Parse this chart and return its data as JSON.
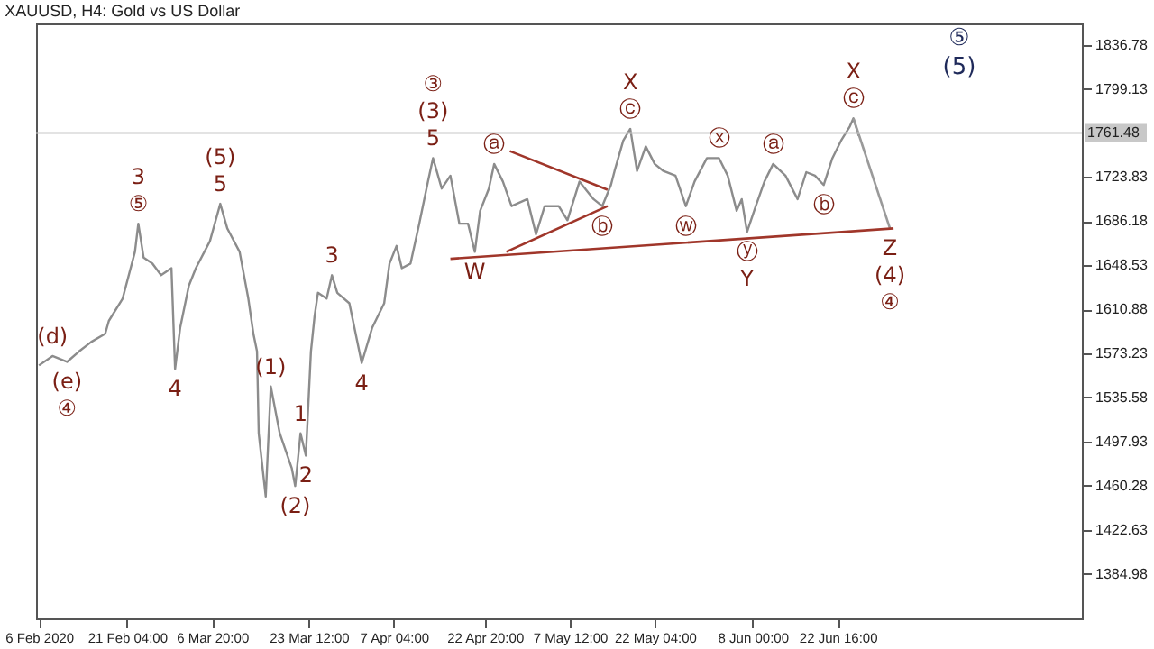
{
  "chart_data": {
    "type": "line",
    "title": "XAUUSD, H4:  Gold vs US Dollar",
    "xlim": [
      "2020-02-05T12:00",
      "2020-08-03T18:00"
    ],
    "xticks": [
      {
        "value": "2020-02-06",
        "label": "6 Feb 2020"
      },
      {
        "value": "2020-02-21T04:00",
        "label": "21 Feb 04:00"
      },
      {
        "value": "2020-03-06T20:00",
        "label": "6 Mar 20:00"
      },
      {
        "value": "2020-03-23T12:00",
        "label": "23 Mar 12:00"
      },
      {
        "value": "2020-04-07T04:00",
        "label": "7 Apr 04:00"
      },
      {
        "value": "2020-04-22T20:00",
        "label": "22 Apr 20:00"
      },
      {
        "value": "2020-05-07T12:00",
        "label": "7 May 12:00"
      },
      {
        "value": "2020-05-22T04:00",
        "label": "22 May 04:00"
      },
      {
        "value": "2020-06-08T00:00",
        "label": "8 Jun 00:00"
      },
      {
        "value": "2020-06-22T16:00",
        "label": "22 Jun 16:00"
      }
    ],
    "ylim": [
      1347,
      1855
    ],
    "yticks": [
      1384.98,
      1422.63,
      1460.28,
      1497.93,
      1535.58,
      1573.23,
      1610.88,
      1648.53,
      1686.18,
      1723.83,
      1799.13,
      1836.78
    ],
    "series": [
      {
        "color": "#8c8c8c",
        "x": [
          "2020-02-06T00:00",
          "2020-02-08T08:00",
          "2020-02-10T20:00",
          "2020-02-12T22:00",
          "2020-02-15T00:00",
          "2020-02-17T10:00",
          "2020-02-18T01:00",
          "2020-02-20T10:00",
          "2020-02-22T13:00",
          "2020-02-23T03:00",
          "2020-02-24T01:00",
          "2020-02-25T13:00",
          "2020-02-27T01:00",
          "2020-02-28T20:00",
          "2020-02-29T11:00",
          "2020-03-01T08:00",
          "2020-03-02T20:00",
          "2020-03-04T01:00",
          "2020-03-06T11:00",
          "2020-03-08T06:00",
          "2020-03-09T11:00",
          "2020-03-11T14:00",
          "2020-03-13T02:00",
          "2020-03-13T23:00",
          "2020-03-14T14:00",
          "2020-03-14T21:00",
          "2020-03-16T02:00",
          "2020-03-16T23:00",
          "2020-03-18T12:00",
          "2020-03-20T14:00",
          "2020-03-21T04:00",
          "2020-03-22T02:00",
          "2020-03-23T00:00",
          "2020-03-23T21:00",
          "2020-03-24T12:00",
          "2020-03-25T02:00",
          "2020-03-26T14:00",
          "2020-03-27T12:00",
          "2020-03-28T10:00",
          "2020-03-30T12:00",
          "2020-04-01T15:00",
          "2020-04-03T10:00",
          "2020-04-05T12:00",
          "2020-04-06T10:00",
          "2020-04-07T15:00",
          "2020-04-08T13:00",
          "2020-04-10T01:00",
          "2020-04-11T13:00",
          "2020-04-13T01:00",
          "2020-04-13T22:00",
          "2020-04-15T10:00",
          "2020-04-16T22:00",
          "2020-04-18T11:00",
          "2020-04-19T23:00",
          "2020-04-21T03:00",
          "2020-04-22T01:00",
          "2020-04-23T13:00",
          "2020-04-24T11:00",
          "2020-04-25T23:00",
          "2020-04-27T11:00",
          "2020-04-30T04:00",
          "2020-05-01T16:00",
          "2020-05-03T04:00",
          "2020-05-05T14:00",
          "2020-05-07T02:00",
          "2020-05-09T04:00",
          "2020-05-11T14:00",
          "2020-05-13T02:00",
          "2020-05-14T14:00",
          "2020-05-15T05:00",
          "2020-05-16T17:00",
          "2020-05-17T22:00",
          "2020-05-19T02:00",
          "2020-05-20T14:00",
          "2020-05-22T03:00",
          "2020-05-23T15:00",
          "2020-05-25T17:00",
          "2020-05-27T12:00",
          "2020-05-29T00:00",
          "2020-05-31T03:00",
          "2020-06-02T05:00",
          "2020-06-03T17:00",
          "2020-06-05T06:00",
          "2020-06-06T03:00",
          "2020-06-07T01:00",
          "2020-06-08T13:00",
          "2020-06-10T01:00",
          "2020-06-11T13:00",
          "2020-06-13T16:00",
          "2020-06-15T18:00",
          "2020-06-17T06:00",
          "2020-06-18T18:00",
          "2020-06-20T06:00",
          "2020-06-21T18:00",
          "2020-06-23T06:00",
          "2020-06-24T18:00",
          "2020-06-25T09:00",
          "2020-06-26T07:00"
        ],
        "values": [
          1563,
          1571,
          1566,
          1575,
          1583,
          1590,
          1601,
          1620,
          1660,
          1684,
          1655,
          1650,
          1640,
          1646,
          1560,
          1595,
          1631,
          1646,
          1669,
          1701,
          1680,
          1660,
          1620,
          1590,
          1575,
          1505,
          1451,
          1545,
          1505,
          1475,
          1460,
          1505,
          1486,
          1575,
          1605,
          1625,
          1620,
          1640,
          1625,
          1616,
          1565,
          1595,
          1616,
          1650,
          1665,
          1646,
          1650,
          1684,
          1720,
          1740,
          1714,
          1725,
          1684,
          1684,
          1660,
          1695,
          1714,
          1735,
          1720,
          1699,
          1705,
          1675,
          1699,
          1699,
          1687,
          1720,
          1705,
          1699,
          1717,
          1729,
          1755,
          1765,
          1729,
          1750,
          1735,
          1729,
          1725,
          1699,
          1720,
          1740,
          1740,
          1725,
          1695,
          1705,
          1677,
          1699,
          1720,
          1735,
          1725,
          1705,
          1728,
          1725,
          1717,
          1740,
          1755,
          1767,
          1774,
          1759
        ]
      },
      {
        "color": "#9a9a9a",
        "x": [
          "2020-06-25T09:00",
          "2020-07-01T16:00"
        ],
        "values": [
          1774,
          1680
        ]
      },
      {
        "color": "#a0362a",
        "x": [
          "2020-04-16T22:00",
          "2020-07-02T07:00"
        ],
        "values": [
          1654,
          1680
        ]
      },
      {
        "color": "#a0362a",
        "x": [
          "2020-04-27T04:00",
          "2020-05-14T00:00"
        ],
        "values": [
          1746,
          1713
        ]
      },
      {
        "color": "#a0362a",
        "x": [
          "2020-04-26T13:00",
          "2020-05-14T00:00"
        ],
        "values": [
          1660,
          1699
        ]
      }
    ],
    "ref_lines": [
      {
        "axis": "y",
        "value": 1761.48,
        "label": "1761.48",
        "color": "#c8c8c8"
      }
    ],
    "annotations": [
      {
        "text": "(d)",
        "x": "2020-02-08T08:00",
        "y": 1571
      },
      {
        "text": "(e)",
        "x": "2020-02-10T20:00",
        "y": 1566
      },
      {
        "text": "④",
        "x": "2020-02-10T20:00",
        "y": 1566
      },
      {
        "text": "⑤",
        "x": "2020-02-23T03:00",
        "y": 1684
      },
      {
        "text": "3",
        "x": "2020-02-23T03:00",
        "y": 1684
      },
      {
        "text": "4",
        "x": "2020-02-29T11:00",
        "y": 1560
      },
      {
        "text": "5",
        "x": "2020-03-08T06:00",
        "y": 1701
      },
      {
        "text": "(5)",
        "x": "2020-03-08T06:00",
        "y": 1701
      },
      {
        "text": "(1)",
        "x": "2020-03-16T23:00",
        "y": 1545
      },
      {
        "text": "(2)",
        "x": "2020-03-21T04:00",
        "y": 1460
      },
      {
        "text": "1",
        "x": "2020-03-22T02:00",
        "y": 1505
      },
      {
        "text": "2",
        "x": "2020-03-23T00:00",
        "y": 1486
      },
      {
        "text": "3",
        "x": "2020-03-27T12:00",
        "y": 1640
      },
      {
        "text": "4",
        "x": "2020-04-01T15:00",
        "y": 1565
      },
      {
        "text": "5",
        "x": "2020-04-13T22:00",
        "y": 1740
      },
      {
        "text": "(3)",
        "x": "2020-04-13T22:00",
        "y": 1740
      },
      {
        "text": "③",
        "x": "2020-04-13T22:00",
        "y": 1740
      },
      {
        "text": "W",
        "x": "2020-04-21T03:00",
        "y": 1660
      },
      {
        "text": "ⓐ",
        "x": "2020-04-24T11:00",
        "y": 1735
      },
      {
        "text": "ⓑ",
        "x": "2020-05-13T02:00",
        "y": 1699
      },
      {
        "text": "ⓒ",
        "x": "2020-05-17T22:00",
        "y": 1765
      },
      {
        "text": "X",
        "x": "2020-05-17T22:00",
        "y": 1765
      },
      {
        "text": "ⓦ",
        "x": "2020-05-27T12:00",
        "y": 1699
      },
      {
        "text": "ⓧ",
        "x": "2020-06-02T05:00",
        "y": 1740
      },
      {
        "text": "ⓨ",
        "x": "2020-06-07T01:00",
        "y": 1677
      },
      {
        "text": "Y",
        "x": "2020-06-07T01:00",
        "y": 1677
      },
      {
        "text": "ⓐ",
        "x": "2020-06-11T13:00",
        "y": 1735
      },
      {
        "text": "ⓑ",
        "x": "2020-06-20T06:00",
        "y": 1717
      },
      {
        "text": "ⓒ",
        "x": "2020-06-25T09:00",
        "y": 1774
      },
      {
        "text": "X",
        "x": "2020-06-25T09:00",
        "y": 1774
      },
      {
        "text": "Z",
        "x": "2020-07-01T16:00",
        "y": 1680
      },
      {
        "text": "(4)",
        "x": "2020-07-01T16:00",
        "y": 1680
      },
      {
        "text": "④",
        "x": "2020-07-01T16:00",
        "y": 1680
      },
      "⑤",
      "(5)"
    ]
  }
}
